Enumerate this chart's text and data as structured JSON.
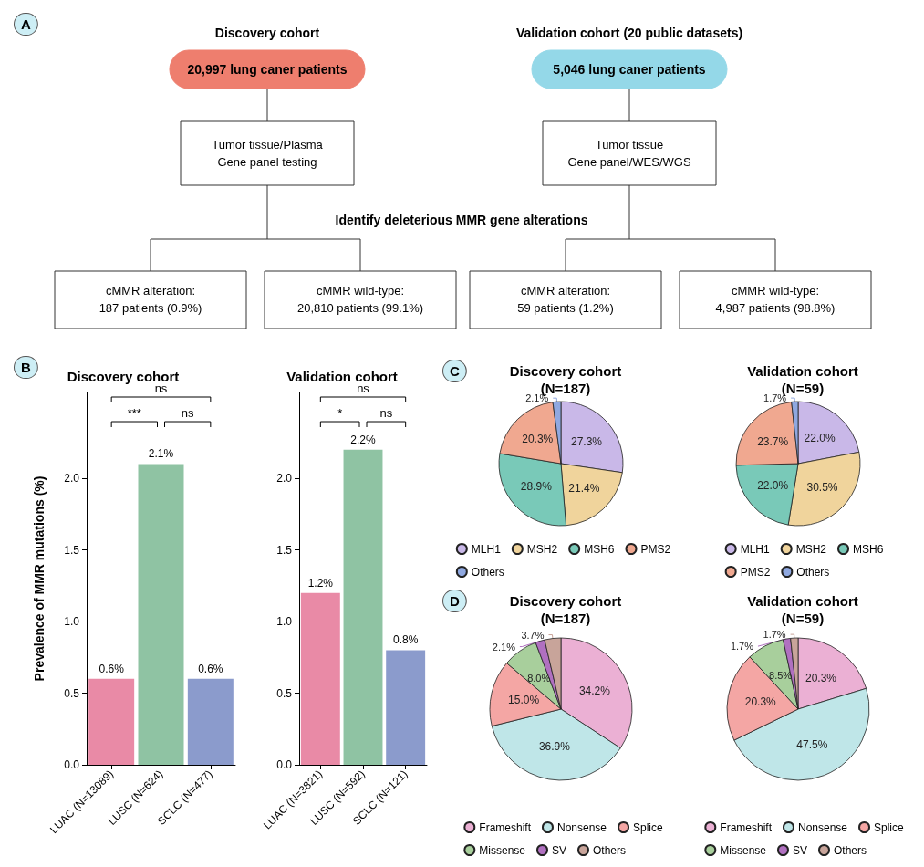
{
  "chart_data": [
    {
      "type": "other",
      "annotations": [
        "A",
        "Discovery cohort",
        "Validation cohort (20 public datasets)",
        "20,997 lung caner patients",
        "5,046 lung caner patients",
        "Tumor tissue/Plasma\nGene panel testing",
        "Tumor tissue\nGene panel/WES/WGS",
        "Identify deleterious MMR gene alterations",
        "cMMR alteration:\n187 patients (0.9%)",
        "cMMR wild-type:\n20,810 patients (99.1%)",
        "cMMR alteration:\n59 patients (1.2%)",
        "cMMR wild-type:\n4,987 patients (98.8%)"
      ],
      "colors": [
        "#ee7e6e",
        "#94d8e8"
      ]
    },
    {
      "type": "bar",
      "title": "Discovery cohort",
      "ylabel": "Prevalence of MMR mutations (%)",
      "categories": [
        "LUAC (N=13089)",
        "LUSC (N=624)",
        "SCLC (N=477)"
      ],
      "values": [
        0.6,
        2.1,
        0.6
      ],
      "colors": [
        "#e98aa6",
        "#8fc3a3",
        "#8b9bcc"
      ],
      "value_labels": [
        "0.6%",
        "2.1%",
        "0.6%"
      ],
      "ylim": [
        0,
        2.6
      ],
      "yticks": [
        {
          "value": 0,
          "label": "0.0"
        },
        {
          "value": 0.5,
          "label": "0.5"
        },
        {
          "value": 1,
          "label": "1.0"
        },
        {
          "value": 1.5,
          "label": "1.5"
        },
        {
          "value": 2,
          "label": "2.0"
        }
      ],
      "annotations": [
        "B",
        "***",
        "ns",
        "ns"
      ],
      "grid": false
    },
    {
      "type": "bar",
      "title": "Validation cohort",
      "categories": [
        "LUAC (N=3821)",
        "LUSC (N=592)",
        "SCLC (N=121)"
      ],
      "values": [
        1.2,
        2.2,
        0.8
      ],
      "colors": [
        "#e98aa6",
        "#8fc3a3",
        "#8b9bcc"
      ],
      "value_labels": [
        "1.2%",
        "2.2%",
        "0.8%"
      ],
      "ylim": [
        0,
        2.6
      ],
      "yticks": [
        {
          "value": 0,
          "label": "0.0"
        },
        {
          "value": 0.5,
          "label": "0.5"
        },
        {
          "value": 1,
          "label": "1.0"
        },
        {
          "value": 1.5,
          "label": "1.5"
        },
        {
          "value": 2,
          "label": "2.0"
        }
      ],
      "annotations": [
        "*",
        "ns",
        "ns"
      ],
      "grid": false
    },
    {
      "type": "pie",
      "title": "Discovery cohort\n(N=187)",
      "categories": [
        "MLH1",
        "MSH2",
        "MSH6",
        "PMS2",
        "Others"
      ],
      "values": [
        27.3,
        21.4,
        28.9,
        20.3,
        2.1
      ],
      "colors": [
        "#c9b8e8",
        "#f0d49c",
        "#79c9b8",
        "#f0a890",
        "#8fa8e0"
      ],
      "value_labels": [
        "27.3%",
        "21.4%",
        "28.9%",
        "20.3%",
        "2.1%"
      ],
      "legend": "bottom",
      "annotations": [
        "C"
      ]
    },
    {
      "type": "pie",
      "title": "Validation cohort\n(N=59)",
      "categories": [
        "MLH1",
        "MSH2",
        "MSH6",
        "PMS2",
        "Others"
      ],
      "values": [
        22.0,
        30.5,
        22.0,
        23.7,
        1.7
      ],
      "colors": [
        "#c9b8e8",
        "#f0d49c",
        "#79c9b8",
        "#f0a890",
        "#8fa8e0"
      ],
      "value_labels": [
        "22.0%",
        "30.5%",
        "22.0%",
        "23.7%",
        "1.7%"
      ],
      "legend": "bottom"
    },
    {
      "type": "pie",
      "title": "Discovery cohort\n(N=187)",
      "categories": [
        "Frameshift",
        "Nonsense",
        "Splice",
        "Missense",
        "SV",
        "Others"
      ],
      "values": [
        34.2,
        36.9,
        15.0,
        8.0,
        2.1,
        3.7
      ],
      "colors": [
        "#ebb0d4",
        "#bfe6e8",
        "#f4a6a4",
        "#a8cf9c",
        "#b070c0",
        "#c8a49a"
      ],
      "value_labels": [
        "34.2%",
        "36.9%",
        "15.0%",
        "8.0%",
        "2.1%",
        "3.7%"
      ],
      "legend": "bottom",
      "annotations": [
        "D"
      ]
    },
    {
      "type": "pie",
      "title": "Validation cohort\n(N=59)",
      "categories": [
        "Frameshift",
        "Nonsense",
        "Splice",
        "Missense",
        "SV",
        "Others"
      ],
      "values": [
        20.3,
        47.5,
        20.3,
        8.5,
        1.7,
        1.7
      ],
      "colors": [
        "#ebb0d4",
        "#bfe6e8",
        "#f4a6a4",
        "#a8cf9c",
        "#b070c0",
        "#c8a49a"
      ],
      "value_labels": [
        "20.3%",
        "47.5%",
        "20.3%",
        "8.5%",
        "1.7%",
        "1.7%"
      ],
      "legend": "bottom"
    }
  ]
}
